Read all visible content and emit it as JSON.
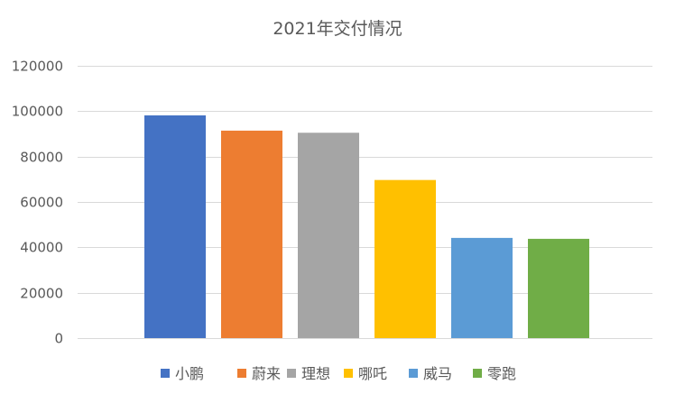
{
  "chart_data": {
    "type": "bar",
    "title": "2021年交付情况",
    "categories": [
      "小鹏",
      "蔚来",
      "理想",
      "哪吒",
      "威马",
      "零跑"
    ],
    "values": [
      98155,
      91429,
      90491,
      69674,
      44152,
      43748
    ],
    "colors": [
      "#4472c4",
      "#ed7d31",
      "#a5a5a5",
      "#ffc000",
      "#5b9bd5",
      "#70ad47"
    ],
    "ylim": [
      0,
      120000
    ],
    "yticks": [
      "0",
      "20000",
      "40000",
      "60000",
      "80000",
      "100000",
      "120000"
    ],
    "ytick_values": [
      0,
      20000,
      40000,
      60000,
      80000,
      100000,
      120000
    ],
    "grid": true,
    "legend_position": "bottom",
    "xlabel": "",
    "ylabel": ""
  }
}
